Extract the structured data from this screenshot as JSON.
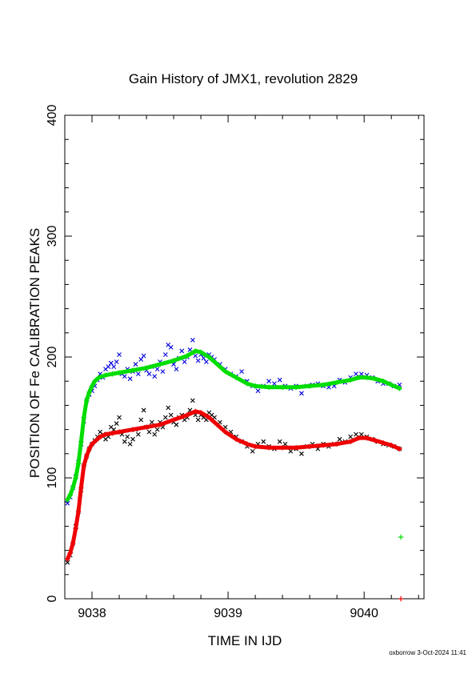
{
  "chart_data": {
    "type": "scatter",
    "title": "Gain History of JMX1, revolution 2829",
    "xlabel": "TIME IN IJD",
    "ylabel": "POSITION OF Fe CALIBRATION PEAKS",
    "xlim": [
      9037.8,
      9040.44
    ],
    "ylim": [
      0,
      400
    ],
    "x_ticks": [
      9038,
      9039,
      9040
    ],
    "y_ticks": [
      0,
      100,
      200,
      300,
      400
    ],
    "grid": false,
    "series": [
      {
        "marker": "x",
        "color": "#0000dd",
        "points": [
          [
            9037.82,
            79
          ],
          [
            9037.84,
            84
          ],
          [
            9037.86,
            92
          ],
          [
            9037.88,
            101
          ],
          [
            9037.9,
            113
          ],
          [
            9037.92,
            128
          ],
          [
            9037.94,
            147
          ],
          [
            9037.96,
            164
          ],
          [
            9037.98,
            169
          ],
          [
            9038.0,
            172
          ],
          [
            9038.02,
            176
          ],
          [
            9038.04,
            181
          ],
          [
            9038.06,
            186
          ],
          [
            9038.08,
            183
          ],
          [
            9038.1,
            190
          ],
          [
            9038.12,
            192
          ],
          [
            9038.14,
            195
          ],
          [
            9038.16,
            192
          ],
          [
            9038.18,
            196
          ],
          [
            9038.2,
            202
          ],
          [
            9038.22,
            186
          ],
          [
            9038.24,
            184
          ],
          [
            9038.26,
            190
          ],
          [
            9038.28,
            182
          ],
          [
            9038.3,
            188
          ],
          [
            9038.32,
            194
          ],
          [
            9038.34,
            186
          ],
          [
            9038.36,
            198
          ],
          [
            9038.38,
            201
          ],
          [
            9038.4,
            189
          ],
          [
            9038.42,
            186
          ],
          [
            9038.44,
            192
          ],
          [
            9038.46,
            184
          ],
          [
            9038.48,
            190
          ],
          [
            9038.5,
            196
          ],
          [
            9038.52,
            188
          ],
          [
            9038.54,
            202
          ],
          [
            9038.56,
            210
          ],
          [
            9038.58,
            208
          ],
          [
            9038.6,
            194
          ],
          [
            9038.62,
            190
          ],
          [
            9038.64,
            199
          ],
          [
            9038.66,
            205
          ],
          [
            9038.68,
            196
          ],
          [
            9038.7,
            200
          ],
          [
            9038.72,
            206
          ],
          [
            9038.74,
            214
          ],
          [
            9038.76,
            201
          ],
          [
            9038.78,
            197
          ],
          [
            9038.8,
            202
          ],
          [
            9038.82,
            199
          ],
          [
            9038.84,
            196
          ],
          [
            9038.86,
            202
          ],
          [
            9038.88,
            200
          ],
          [
            9038.9,
            198
          ],
          [
            9038.94,
            194
          ],
          [
            9038.98,
            190
          ],
          [
            9039.02,
            186
          ],
          [
            9039.06,
            184
          ],
          [
            9039.1,
            188
          ],
          [
            9039.14,
            180
          ],
          [
            9039.18,
            176
          ],
          [
            9039.22,
            172
          ],
          [
            9039.26,
            176
          ],
          [
            9039.3,
            180
          ],
          [
            9039.34,
            178
          ],
          [
            9039.38,
            181
          ],
          [
            9039.42,
            176
          ],
          [
            9039.46,
            174
          ],
          [
            9039.5,
            176
          ],
          [
            9039.54,
            170
          ],
          [
            9039.58,
            176
          ],
          [
            9039.62,
            177
          ],
          [
            9039.66,
            178
          ],
          [
            9039.7,
            176
          ],
          [
            9039.74,
            175
          ],
          [
            9039.78,
            176
          ],
          [
            9039.82,
            181
          ],
          [
            9039.86,
            179
          ],
          [
            9039.9,
            183
          ],
          [
            9039.94,
            186
          ],
          [
            9039.98,
            186
          ],
          [
            9040.02,
            185
          ],
          [
            9040.06,
            183
          ],
          [
            9040.1,
            180
          ],
          [
            9040.14,
            178
          ],
          [
            9040.18,
            178
          ],
          [
            9040.22,
            176
          ],
          [
            9040.26,
            177
          ]
        ]
      },
      {
        "marker": "+",
        "color": "#00dd00",
        "points": [
          [
            9037.82,
            82
          ],
          [
            9037.84,
            86
          ],
          [
            9037.86,
            92
          ],
          [
            9037.88,
            100
          ],
          [
            9037.9,
            112
          ],
          [
            9037.92,
            130
          ],
          [
            9037.94,
            150
          ],
          [
            9037.96,
            164
          ],
          [
            9037.98,
            171
          ],
          [
            9038.0,
            176
          ],
          [
            9038.02,
            180
          ],
          [
            9038.05,
            183
          ],
          [
            9038.1,
            185
          ],
          [
            9038.15,
            186
          ],
          [
            9038.2,
            187
          ],
          [
            9038.3,
            189
          ],
          [
            9038.4,
            191
          ],
          [
            9038.5,
            194
          ],
          [
            9038.6,
            197
          ],
          [
            9038.7,
            201
          ],
          [
            9038.76,
            205
          ],
          [
            9038.8,
            204
          ],
          [
            9038.86,
            200
          ],
          [
            9038.92,
            194
          ],
          [
            9038.98,
            188
          ],
          [
            9039.06,
            183
          ],
          [
            9039.14,
            178
          ],
          [
            9039.2,
            176
          ],
          [
            9039.3,
            175
          ],
          [
            9039.4,
            175
          ],
          [
            9039.5,
            175
          ],
          [
            9039.6,
            176
          ],
          [
            9039.7,
            177
          ],
          [
            9039.8,
            179
          ],
          [
            9039.9,
            181
          ],
          [
            9039.96,
            183
          ],
          [
            9040.02,
            183
          ],
          [
            9040.08,
            182
          ],
          [
            9040.14,
            180
          ],
          [
            9040.2,
            177
          ],
          [
            9040.26,
            174
          ],
          [
            9040.27,
            51
          ]
        ]
      },
      {
        "marker": "x",
        "color": "#000000",
        "points": [
          [
            9037.82,
            30
          ],
          [
            9037.84,
            36
          ],
          [
            9037.86,
            46
          ],
          [
            9037.88,
            60
          ],
          [
            9037.9,
            72
          ],
          [
            9037.92,
            90
          ],
          [
            9037.94,
            110
          ],
          [
            9037.96,
            118
          ],
          [
            9037.98,
            124
          ],
          [
            9038.0,
            128
          ],
          [
            9038.02,
            131
          ],
          [
            9038.04,
            134
          ],
          [
            9038.06,
            138
          ],
          [
            9038.08,
            136
          ],
          [
            9038.1,
            132
          ],
          [
            9038.12,
            134
          ],
          [
            9038.14,
            142
          ],
          [
            9038.16,
            140
          ],
          [
            9038.18,
            145
          ],
          [
            9038.2,
            150
          ],
          [
            9038.22,
            136
          ],
          [
            9038.24,
            130
          ],
          [
            9038.26,
            134
          ],
          [
            9038.28,
            128
          ],
          [
            9038.3,
            132
          ],
          [
            9038.32,
            140
          ],
          [
            9038.34,
            136
          ],
          [
            9038.36,
            148
          ],
          [
            9038.38,
            156
          ],
          [
            9038.4,
            142
          ],
          [
            9038.42,
            138
          ],
          [
            9038.44,
            146
          ],
          [
            9038.46,
            136
          ],
          [
            9038.48,
            140
          ],
          [
            9038.5,
            146
          ],
          [
            9038.52,
            142
          ],
          [
            9038.54,
            150
          ],
          [
            9038.56,
            158
          ],
          [
            9038.58,
            152
          ],
          [
            9038.6,
            146
          ],
          [
            9038.62,
            144
          ],
          [
            9038.64,
            150
          ],
          [
            9038.66,
            152
          ],
          [
            9038.68,
            148
          ],
          [
            9038.7,
            150
          ],
          [
            9038.72,
            156
          ],
          [
            9038.74,
            164
          ],
          [
            9038.76,
            152
          ],
          [
            9038.78,
            148
          ],
          [
            9038.8,
            152
          ],
          [
            9038.82,
            150
          ],
          [
            9038.84,
            148
          ],
          [
            9038.86,
            154
          ],
          [
            9038.88,
            152
          ],
          [
            9038.9,
            150
          ],
          [
            9038.94,
            146
          ],
          [
            9038.98,
            142
          ],
          [
            9039.02,
            138
          ],
          [
            9039.06,
            134
          ],
          [
            9039.1,
            130
          ],
          [
            9039.14,
            126
          ],
          [
            9039.18,
            122
          ],
          [
            9039.22,
            128
          ],
          [
            9039.26,
            130
          ],
          [
            9039.3,
            126
          ],
          [
            9039.34,
            124
          ],
          [
            9039.38,
            130
          ],
          [
            9039.42,
            128
          ],
          [
            9039.46,
            122
          ],
          [
            9039.5,
            124
          ],
          [
            9039.54,
            120
          ],
          [
            9039.58,
            126
          ],
          [
            9039.62,
            128
          ],
          [
            9039.66,
            124
          ],
          [
            9039.7,
            128
          ],
          [
            9039.74,
            126
          ],
          [
            9039.78,
            128
          ],
          [
            9039.82,
            132
          ],
          [
            9039.86,
            130
          ],
          [
            9039.9,
            134
          ],
          [
            9039.94,
            136
          ],
          [
            9039.98,
            136
          ],
          [
            9040.02,
            134
          ],
          [
            9040.06,
            132
          ],
          [
            9040.1,
            130
          ],
          [
            9040.14,
            128
          ],
          [
            9040.18,
            127
          ],
          [
            9040.22,
            126
          ],
          [
            9040.26,
            124
          ]
        ]
      },
      {
        "marker": "+",
        "color": "#ee0000",
        "points": [
          [
            9037.82,
            33
          ],
          [
            9037.84,
            38
          ],
          [
            9037.86,
            46
          ],
          [
            9037.88,
            58
          ],
          [
            9037.9,
            72
          ],
          [
            9037.92,
            92
          ],
          [
            9037.94,
            110
          ],
          [
            9037.96,
            118
          ],
          [
            9037.98,
            124
          ],
          [
            9038.0,
            128
          ],
          [
            9038.03,
            131
          ],
          [
            9038.06,
            134
          ],
          [
            9038.1,
            136
          ],
          [
            9038.15,
            137
          ],
          [
            9038.2,
            138
          ],
          [
            9038.3,
            140
          ],
          [
            9038.4,
            142
          ],
          [
            9038.5,
            144
          ],
          [
            9038.6,
            148
          ],
          [
            9038.7,
            152
          ],
          [
            9038.76,
            155
          ],
          [
            9038.8,
            154
          ],
          [
            9038.86,
            150
          ],
          [
            9038.92,
            144
          ],
          [
            9038.98,
            138
          ],
          [
            9039.06,
            132
          ],
          [
            9039.14,
            128
          ],
          [
            9039.2,
            126
          ],
          [
            9039.3,
            125
          ],
          [
            9039.4,
            125
          ],
          [
            9039.5,
            125
          ],
          [
            9039.6,
            126
          ],
          [
            9039.7,
            127
          ],
          [
            9039.8,
            128
          ],
          [
            9039.9,
            130
          ],
          [
            9039.96,
            133
          ],
          [
            9040.02,
            133
          ],
          [
            9040.08,
            131
          ],
          [
            9040.14,
            129
          ],
          [
            9040.2,
            127
          ],
          [
            9040.26,
            124
          ],
          [
            9040.27,
            0
          ]
        ]
      }
    ]
  },
  "footer": "oxborrow  3-Oct-2024 11:41"
}
